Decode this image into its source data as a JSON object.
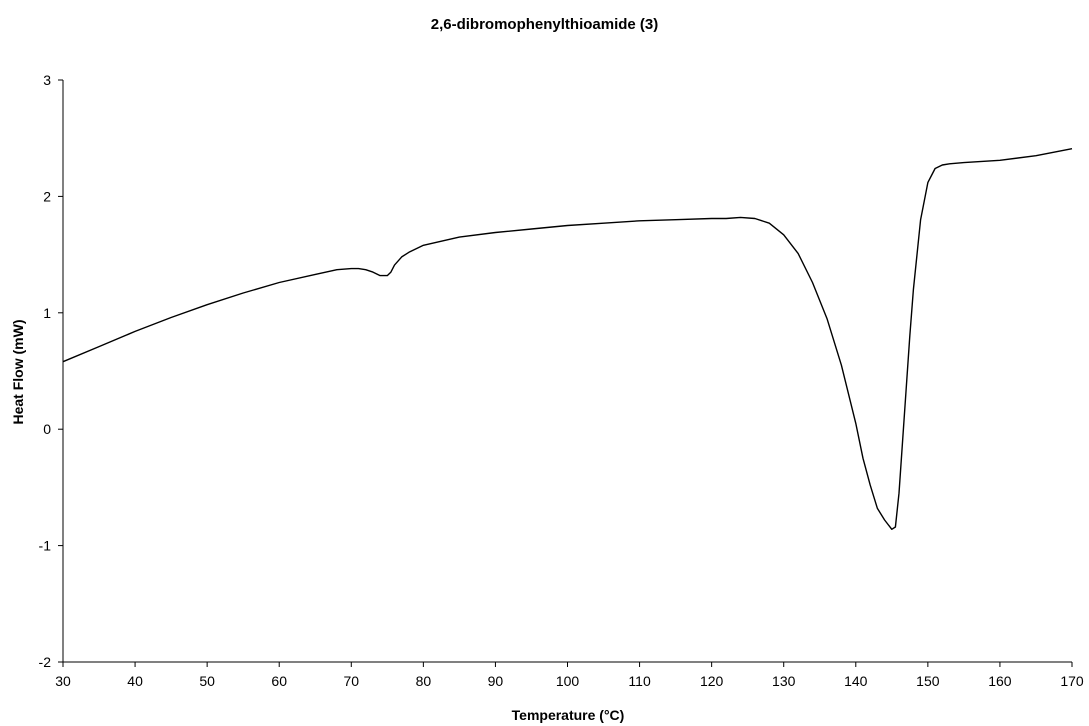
{
  "chart_data": {
    "type": "line",
    "title": "2,6-dibromophenylthioamide (3)",
    "xlabel": "Temperature (°C)",
    "ylabel": "Heat Flow (mW)",
    "xlim": [
      30,
      170
    ],
    "ylim": [
      -2,
      3
    ],
    "xticks": [
      30,
      40,
      50,
      60,
      70,
      80,
      90,
      100,
      110,
      120,
      130,
      140,
      150,
      160,
      170
    ],
    "yticks": [
      -2,
      -1,
      0,
      1,
      2,
      3
    ],
    "grid": false,
    "legend": "none",
    "line_color": "#000000",
    "series": [
      {
        "x": [
          30,
          35,
          40,
          45,
          50,
          55,
          60,
          65,
          68,
          70,
          71,
          72,
          73,
          74,
          75,
          75.5,
          76,
          77,
          78,
          80,
          85,
          90,
          95,
          100,
          105,
          110,
          115,
          120,
          122,
          124,
          126,
          128,
          130,
          132,
          134,
          136,
          138,
          140,
          141,
          142,
          143,
          144,
          145,
          145.5,
          146,
          146.5,
          147,
          147.5,
          148,
          149,
          150,
          151,
          152,
          153,
          155,
          160,
          165,
          170
        ],
        "y": [
          0.58,
          0.71,
          0.84,
          0.96,
          1.07,
          1.17,
          1.26,
          1.33,
          1.37,
          1.38,
          1.38,
          1.37,
          1.35,
          1.32,
          1.32,
          1.35,
          1.41,
          1.48,
          1.52,
          1.58,
          1.65,
          1.69,
          1.72,
          1.75,
          1.77,
          1.79,
          1.8,
          1.81,
          1.81,
          1.82,
          1.81,
          1.77,
          1.67,
          1.51,
          1.26,
          0.95,
          0.55,
          0.05,
          -0.25,
          -0.48,
          -0.68,
          -0.78,
          -0.86,
          -0.84,
          -0.55,
          -0.1,
          0.35,
          0.8,
          1.2,
          1.8,
          2.12,
          2.24,
          2.27,
          2.28,
          2.29,
          2.31,
          2.35,
          2.41
        ]
      }
    ]
  }
}
